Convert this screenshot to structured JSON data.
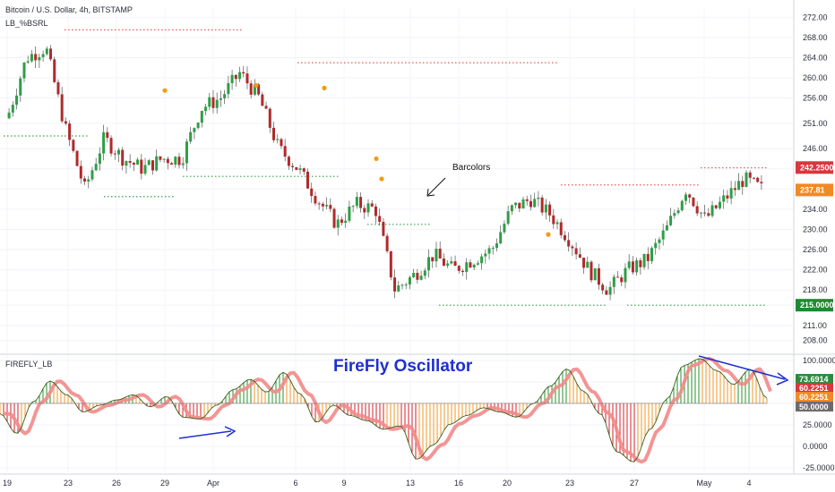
{
  "header": {
    "symbol_line": "Bitcoin / U.S. Dollar, 4h, BITSTAMP",
    "indicator_line": "LB_%BSRL"
  },
  "annotations": {
    "barcolors": "Barcolors",
    "oscillator_title": "FireFly Oscillator",
    "oscillator_name": "FIREFLY_LB"
  },
  "colors": {
    "up": "#2e9e45",
    "down": "#b02a2a",
    "resistance_dotted": "#e35a5a",
    "support_dotted": "#3aa04a",
    "dot_marker": "#f39c12",
    "osc_green": "#3d9b3d",
    "osc_orange": "#f2a03a",
    "osc_red": "#d9363e",
    "osc_signal": "#f28a8a",
    "annotation_blue": "#1f2fd1"
  },
  "price_axis": {
    "ticks": [
      "272.00",
      "268.00",
      "264.00",
      "260.00",
      "256.00",
      "251.00",
      "246.00",
      "242.00",
      "238.00",
      "234.00",
      "230.00",
      "226.00",
      "222.00",
      "218.00",
      "215.00",
      "211.00",
      "208.00"
    ],
    "badges": [
      {
        "label": "242.2500",
        "color": "#d9363e"
      },
      {
        "label": "237.81",
        "color": "#f08a24"
      },
      {
        "label": "215.0000",
        "color": "#1e8a32"
      }
    ]
  },
  "osc_axis": {
    "ticks": [
      "100.0000",
      "75.0000",
      "50.0000",
      "25.0000",
      "0.0000",
      "-25.0000"
    ],
    "badges": [
      {
        "label": "73.6914",
        "color": "#2e8b3e"
      },
      {
        "label": "60.2251",
        "color": "#d9363e"
      },
      {
        "label": "60.2251",
        "color": "#f08a24"
      },
      {
        "label": "50.0000",
        "color": "#6b6b6b"
      }
    ]
  },
  "time_axis": {
    "ticks": [
      "19",
      "23",
      "26",
      "29",
      "Apr",
      "6",
      "9",
      "13",
      "16",
      "20",
      "23",
      "27",
      "May",
      "4"
    ]
  },
  "chart_data": [
    {
      "type": "candlestick",
      "title": "Bitcoin / U.S. Dollar, 4h, BITSTAMP",
      "ylim": [
        206,
        274
      ],
      "resistance_levels": [
        269.5,
        263.0,
        242.2,
        238.8
      ],
      "support_levels": [
        248.5,
        236.5,
        240.5,
        231.0,
        215.0
      ],
      "close_path": [
        {
          "x": "19",
          "close": 252
        },
        {
          "x": "21",
          "close": 264
        },
        {
          "x": "23",
          "close": 266
        },
        {
          "x": "24",
          "close": 250
        },
        {
          "x": "25",
          "close": 238
        },
        {
          "x": "26",
          "close": 248
        },
        {
          "x": "28",
          "close": 244
        },
        {
          "x": "29",
          "close": 242
        },
        {
          "x": "31",
          "close": 244
        },
        {
          "x": "Apr",
          "close": 244
        },
        {
          "x": "3",
          "close": 254
        },
        {
          "x": "5",
          "close": 256
        },
        {
          "x": "6",
          "close": 261
        },
        {
          "x": "7",
          "close": 256
        },
        {
          "x": "8",
          "close": 246
        },
        {
          "x": "9",
          "close": 242
        },
        {
          "x": "10",
          "close": 236
        },
        {
          "x": "11",
          "close": 231
        },
        {
          "x": "12",
          "close": 235
        },
        {
          "x": "13",
          "close": 234
        },
        {
          "x": "14",
          "close": 218
        },
        {
          "x": "15",
          "close": 221
        },
        {
          "x": "16",
          "close": 225
        },
        {
          "x": "17",
          "close": 222
        },
        {
          "x": "19",
          "close": 224
        },
        {
          "x": "21",
          "close": 226
        },
        {
          "x": "22",
          "close": 234
        },
        {
          "x": "23",
          "close": 236
        },
        {
          "x": "24",
          "close": 233
        },
        {
          "x": "25",
          "close": 228
        },
        {
          "x": "26",
          "close": 222
        },
        {
          "x": "27",
          "close": 218
        },
        {
          "x": "28",
          "close": 222
        },
        {
          "x": "29",
          "close": 224
        },
        {
          "x": "30",
          "close": 230
        },
        {
          "x": "May",
          "close": 238
        },
        {
          "x": "2",
          "close": 232
        },
        {
          "x": "3",
          "close": 236
        },
        {
          "x": "4",
          "close": 240
        },
        {
          "x": "5",
          "close": 237.81
        }
      ]
    },
    {
      "type": "area",
      "title": "FireFly Oscillator",
      "name": "FIREFLY_LB",
      "ylim": [
        -30,
        105
      ],
      "midline": 50,
      "x": [
        "19",
        "21",
        "22",
        "23",
        "24",
        "25",
        "26",
        "27",
        "28",
        "29",
        "30",
        "31",
        "Apr",
        "2",
        "3",
        "4",
        "5",
        "6",
        "7",
        "8",
        "9",
        "10",
        "11",
        "12",
        "13",
        "14",
        "15",
        "16",
        "17",
        "18",
        "19",
        "20",
        "21",
        "22",
        "23",
        "24",
        "25",
        "26",
        "27",
        "28",
        "29",
        "30",
        "May",
        "2",
        "3",
        "4",
        "5"
      ],
      "values": [
        38,
        15,
        52,
        76,
        60,
        40,
        48,
        54,
        60,
        46,
        58,
        34,
        32,
        48,
        66,
        78,
        63,
        86,
        61,
        28,
        48,
        36,
        30,
        20,
        24,
        -15,
        2,
        26,
        36,
        45,
        40,
        34,
        50,
        70,
        90,
        64,
        38,
        -6,
        -18,
        20,
        55,
        94,
        102,
        88,
        72,
        90,
        56
      ]
    }
  ]
}
